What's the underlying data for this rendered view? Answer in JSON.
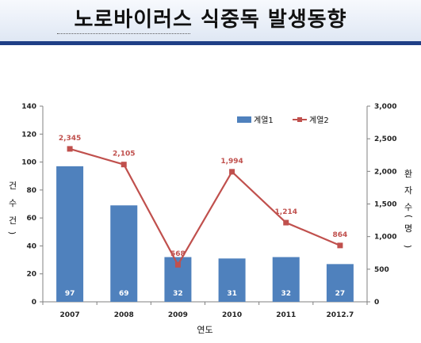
{
  "title": "노로바이러스 식중독 발생동향",
  "colors": {
    "bar": "#4f81bd",
    "line": "#c0504d",
    "title_rule": "#1f3f86"
  },
  "chart_data": {
    "type": "bar",
    "categories": [
      "2007",
      "2008",
      "2009",
      "2010",
      "2011",
      "2012.7"
    ],
    "series": [
      {
        "name": "계열1",
        "type": "bar",
        "axis": "left",
        "values": [
          97,
          69,
          32,
          31,
          32,
          27
        ]
      },
      {
        "name": "계열2",
        "type": "line",
        "axis": "right",
        "values": [
          2345,
          2105,
          568,
          1994,
          1214,
          864
        ],
        "labels": [
          "2,345",
          "2,105",
          "568",
          "1,994",
          "1,214",
          "864"
        ]
      }
    ],
    "xlabel": "연도",
    "ylabel_left_chars": [
      "건",
      "수",
      "건"
    ],
    "ylabel_right_chars": [
      "환",
      "자",
      "수",
      "명"
    ],
    "ylim_left": [
      0,
      140
    ],
    "yticks_left": [
      "0",
      "20",
      "40",
      "60",
      "80",
      "100",
      "120",
      "140"
    ],
    "ylim_right": [
      0,
      3000
    ],
    "yticks_right": [
      "0",
      "500",
      "1,000",
      "1,500",
      "2,000",
      "2,500",
      "3,000"
    ],
    "legend_position": "top-right",
    "grid": false
  }
}
